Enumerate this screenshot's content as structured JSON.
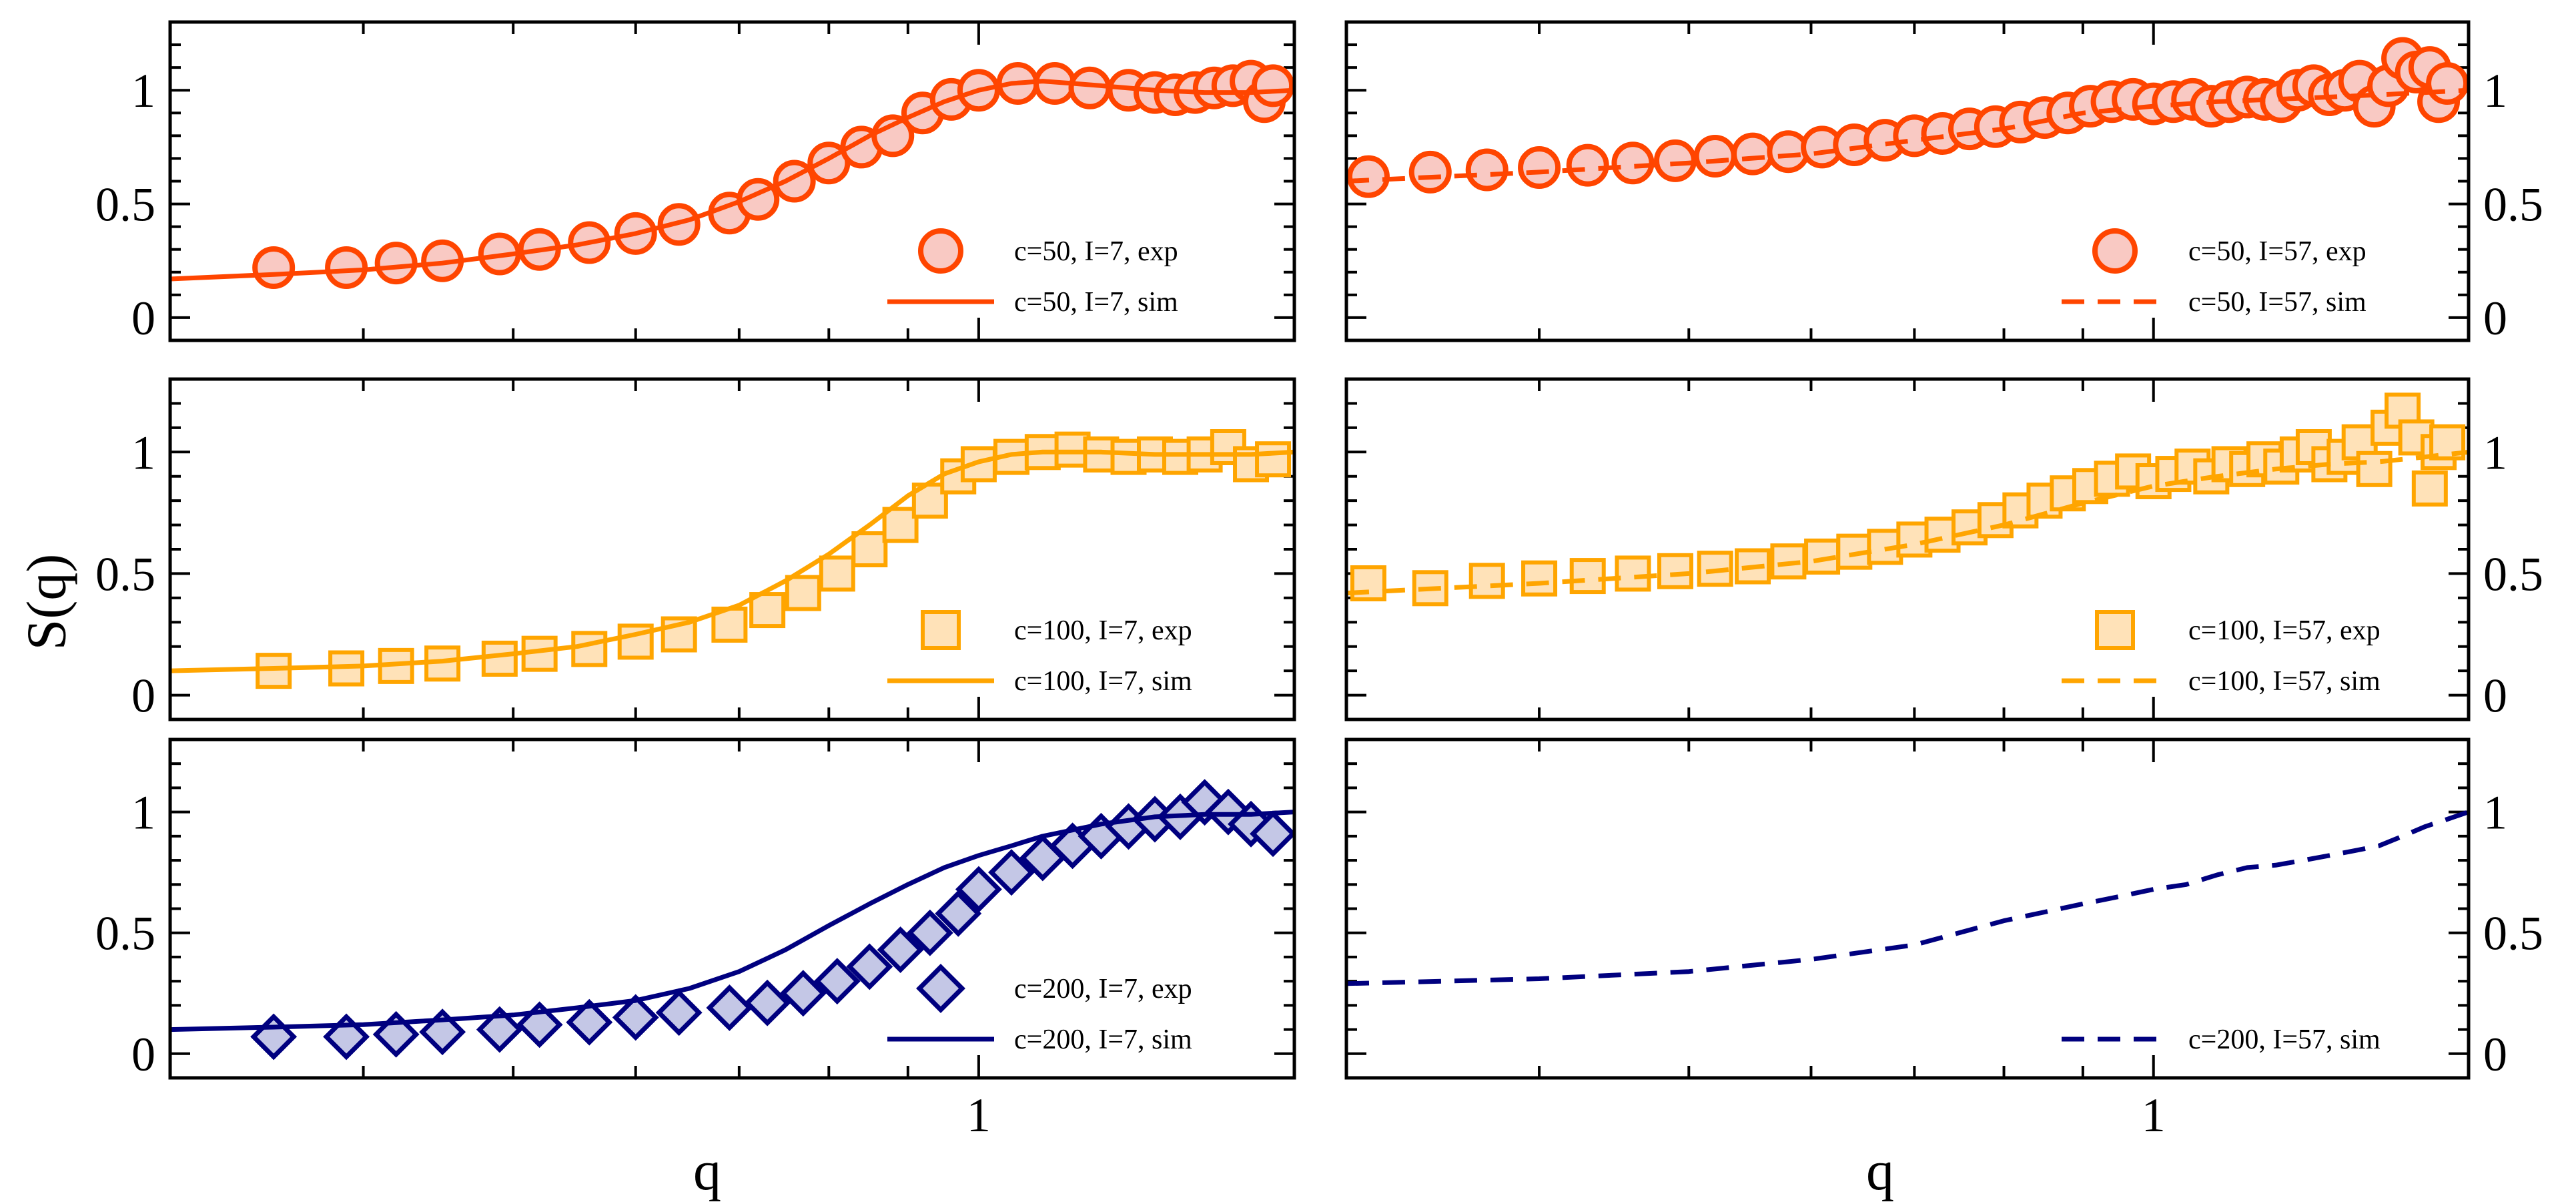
{
  "figure": {
    "y_axis_label": "S(q)",
    "x_axis_label": "q"
  },
  "colors": {
    "c50": "#ff4500",
    "c50_fill": "#f9c9c3",
    "c100": "#ffa500",
    "c100_fill": "#ffe2b8",
    "c200": "#00007f",
    "c200_fill": "#c4c7e6",
    "frame": "#000000"
  },
  "chart_data": [
    {
      "type": "scatter",
      "panel": "top-left",
      "x_scale": "log",
      "xlim": [
        0.3,
        1.6
      ],
      "ylim": [
        -0.1,
        1.3
      ],
      "x_tick_labels": [
        {
          "value": 1,
          "label": "1"
        }
      ],
      "y_tick_labels": [
        {
          "value": 0,
          "label": "0"
        },
        {
          "value": 0.5,
          "label": "0.5"
        },
        {
          "value": 1,
          "label": "1"
        }
      ],
      "legend_position": "bottom-right",
      "series": [
        {
          "name": "c=50, I=7, exp",
          "kind": "exp",
          "marker": "circle",
          "color": "#ff4500",
          "fill": "#f9c9c3",
          "x": [
            0.35,
            0.39,
            0.42,
            0.45,
            0.49,
            0.52,
            0.56,
            0.6,
            0.64,
            0.69,
            0.72,
            0.76,
            0.8,
            0.84,
            0.88,
            0.92,
            0.96,
            1.0,
            1.06,
            1.12,
            1.18,
            1.25,
            1.3,
            1.34,
            1.38,
            1.42,
            1.46,
            1.5,
            1.53,
            1.55
          ],
          "y": [
            0.22,
            0.22,
            0.24,
            0.25,
            0.28,
            0.3,
            0.33,
            0.37,
            0.41,
            0.46,
            0.52,
            0.6,
            0.68,
            0.75,
            0.8,
            0.9,
            0.96,
            1.0,
            1.03,
            1.03,
            1.01,
            1.0,
            0.99,
            0.98,
            0.99,
            1.01,
            1.02,
            1.04,
            0.95,
            1.02
          ]
        },
        {
          "name": "c=50, I=7, sim",
          "kind": "sim",
          "line": "solid",
          "color": "#ff4500",
          "x": [
            0.3,
            0.35,
            0.4,
            0.45,
            0.5,
            0.55,
            0.6,
            0.65,
            0.7,
            0.75,
            0.8,
            0.85,
            0.9,
            0.95,
            1.0,
            1.05,
            1.1,
            1.15,
            1.2,
            1.3,
            1.4,
            1.5,
            1.6
          ],
          "y": [
            0.17,
            0.19,
            0.21,
            0.24,
            0.28,
            0.32,
            0.37,
            0.43,
            0.51,
            0.6,
            0.7,
            0.8,
            0.88,
            0.95,
            1.0,
            1.03,
            1.04,
            1.03,
            1.02,
            1.0,
            0.99,
            0.99,
            1.0
          ]
        }
      ]
    },
    {
      "type": "scatter",
      "panel": "top-right",
      "x_scale": "log",
      "xlim": [
        0.3,
        1.6
      ],
      "ylim": [
        -0.1,
        1.3
      ],
      "x_tick_labels": [
        {
          "value": 1,
          "label": "1"
        }
      ],
      "y_tick_labels": [
        {
          "value": 0,
          "label": "0"
        },
        {
          "value": 0.5,
          "label": "0.5"
        },
        {
          "value": 1,
          "label": "1"
        }
      ],
      "legend_position": "bottom-right",
      "series": [
        {
          "name": "c=50, I=57, exp",
          "kind": "exp",
          "marker": "circle",
          "color": "#ff4500",
          "fill": "#f9c9c3",
          "x": [
            0.31,
            0.34,
            0.37,
            0.4,
            0.43,
            0.46,
            0.49,
            0.52,
            0.55,
            0.58,
            0.61,
            0.64,
            0.67,
            0.7,
            0.73,
            0.76,
            0.79,
            0.82,
            0.85,
            0.88,
            0.91,
            0.94,
            0.97,
            1.0,
            1.03,
            1.06,
            1.09,
            1.12,
            1.15,
            1.18,
            1.21,
            1.24,
            1.27,
            1.3,
            1.33,
            1.36,
            1.39,
            1.42,
            1.45,
            1.48,
            1.51,
            1.53,
            1.55
          ],
          "y": [
            0.62,
            0.64,
            0.65,
            0.66,
            0.67,
            0.68,
            0.69,
            0.71,
            0.72,
            0.73,
            0.75,
            0.76,
            0.78,
            0.8,
            0.81,
            0.83,
            0.84,
            0.86,
            0.88,
            0.9,
            0.93,
            0.95,
            0.96,
            0.94,
            0.95,
            0.96,
            0.93,
            0.95,
            0.97,
            0.96,
            0.95,
            1.0,
            1.02,
            0.98,
            1.0,
            1.04,
            0.93,
            1.02,
            1.14,
            1.08,
            1.1,
            0.95,
            1.03
          ]
        },
        {
          "name": "c=50, I=57, sim",
          "kind": "sim",
          "line": "dashed",
          "color": "#ff4500",
          "x": [
            0.3,
            0.4,
            0.5,
            0.6,
            0.7,
            0.8,
            0.9,
            1.0,
            1.1,
            1.2,
            1.3,
            1.4,
            1.5,
            1.6
          ],
          "y": [
            0.6,
            0.64,
            0.68,
            0.72,
            0.78,
            0.83,
            0.9,
            0.93,
            0.95,
            0.96,
            0.97,
            0.98,
            0.99,
            1.0
          ]
        }
      ]
    },
    {
      "type": "scatter",
      "panel": "middle-left",
      "x_scale": "log",
      "xlim": [
        0.3,
        1.6
      ],
      "ylim": [
        -0.1,
        1.3
      ],
      "x_tick_labels": [
        {
          "value": 1,
          "label": "1"
        }
      ],
      "y_tick_labels": [
        {
          "value": 0,
          "label": "0"
        },
        {
          "value": 0.5,
          "label": "0.5"
        },
        {
          "value": 1,
          "label": "1"
        }
      ],
      "legend_position": "bottom-right",
      "series": [
        {
          "name": "c=100, I=7, exp",
          "kind": "exp",
          "marker": "square",
          "color": "#ffa500",
          "fill": "#ffe2b8",
          "x": [
            0.35,
            0.39,
            0.42,
            0.45,
            0.49,
            0.52,
            0.56,
            0.6,
            0.64,
            0.69,
            0.73,
            0.77,
            0.81,
            0.85,
            0.89,
            0.93,
            0.97,
            1.0,
            1.05,
            1.1,
            1.15,
            1.2,
            1.25,
            1.3,
            1.35,
            1.4,
            1.45,
            1.5,
            1.55
          ],
          "y": [
            0.1,
            0.11,
            0.12,
            0.13,
            0.15,
            0.17,
            0.19,
            0.22,
            0.25,
            0.29,
            0.35,
            0.42,
            0.5,
            0.6,
            0.7,
            0.8,
            0.9,
            0.95,
            0.98,
            1.0,
            1.01,
            0.99,
            0.98,
            0.99,
            0.98,
            0.99,
            1.02,
            0.95,
            0.97
          ]
        },
        {
          "name": "c=100, I=7, sim",
          "kind": "sim",
          "line": "solid",
          "color": "#ffa500",
          "x": [
            0.3,
            0.35,
            0.4,
            0.45,
            0.5,
            0.55,
            0.6,
            0.65,
            0.7,
            0.75,
            0.8,
            0.85,
            0.9,
            0.95,
            1.0,
            1.05,
            1.1,
            1.2,
            1.3,
            1.4,
            1.5,
            1.6
          ],
          "y": [
            0.1,
            0.11,
            0.12,
            0.14,
            0.17,
            0.2,
            0.25,
            0.3,
            0.37,
            0.47,
            0.58,
            0.7,
            0.82,
            0.91,
            0.96,
            0.99,
            1.0,
            1.0,
            0.99,
            0.99,
            0.99,
            1.0
          ]
        }
      ]
    },
    {
      "type": "scatter",
      "panel": "middle-right",
      "x_scale": "log",
      "xlim": [
        0.3,
        1.6
      ],
      "ylim": [
        -0.1,
        1.3
      ],
      "x_tick_labels": [
        {
          "value": 1,
          "label": "1"
        }
      ],
      "y_tick_labels": [
        {
          "value": 0,
          "label": "0"
        },
        {
          "value": 0.5,
          "label": "0.5"
        },
        {
          "value": 1,
          "label": "1"
        }
      ],
      "legend_position": "bottom-right",
      "series": [
        {
          "name": "c=100, I=57, exp",
          "kind": "exp",
          "marker": "square",
          "color": "#ffa500",
          "fill": "#ffe2b8",
          "x": [
            0.31,
            0.34,
            0.37,
            0.4,
            0.43,
            0.46,
            0.49,
            0.52,
            0.55,
            0.58,
            0.61,
            0.64,
            0.67,
            0.7,
            0.73,
            0.76,
            0.79,
            0.82,
            0.85,
            0.88,
            0.91,
            0.94,
            0.97,
            1.0,
            1.03,
            1.06,
            1.09,
            1.12,
            1.15,
            1.18,
            1.21,
            1.24,
            1.27,
            1.3,
            1.33,
            1.36,
            1.39,
            1.42,
            1.45,
            1.48,
            1.51,
            1.53,
            1.55
          ],
          "y": [
            0.46,
            0.44,
            0.47,
            0.48,
            0.49,
            0.5,
            0.51,
            0.52,
            0.53,
            0.55,
            0.57,
            0.59,
            0.61,
            0.64,
            0.66,
            0.69,
            0.72,
            0.76,
            0.8,
            0.83,
            0.86,
            0.89,
            0.92,
            0.88,
            0.91,
            0.94,
            0.9,
            0.95,
            0.93,
            0.97,
            0.94,
            0.99,
            1.02,
            0.95,
            0.98,
            1.04,
            0.93,
            1.1,
            1.17,
            1.06,
            0.85,
            1.0,
            1.04
          ]
        },
        {
          "name": "c=100, I=57, sim",
          "kind": "sim",
          "line": "dashed",
          "color": "#ffa500",
          "x": [
            0.3,
            0.4,
            0.5,
            0.6,
            0.7,
            0.8,
            0.9,
            1.0,
            1.1,
            1.2,
            1.3,
            1.4,
            1.5,
            1.6
          ],
          "y": [
            0.42,
            0.46,
            0.5,
            0.55,
            0.62,
            0.7,
            0.79,
            0.86,
            0.9,
            0.93,
            0.95,
            0.96,
            0.98,
            1.0
          ]
        }
      ]
    },
    {
      "type": "scatter",
      "panel": "bottom-left",
      "x_scale": "log",
      "xlim": [
        0.3,
        1.6
      ],
      "ylim": [
        -0.1,
        1.3
      ],
      "x_tick_labels": [
        {
          "value": 1,
          "label": "1"
        }
      ],
      "y_tick_labels": [
        {
          "value": 0,
          "label": "0"
        },
        {
          "value": 0.5,
          "label": "0.5"
        },
        {
          "value": 1,
          "label": "1"
        }
      ],
      "legend_position": "bottom-right",
      "series": [
        {
          "name": "c=200, I=7, exp",
          "kind": "exp",
          "marker": "diamond",
          "color": "#00007f",
          "fill": "#c4c7e6",
          "x": [
            0.35,
            0.39,
            0.42,
            0.45,
            0.49,
            0.52,
            0.56,
            0.6,
            0.64,
            0.69,
            0.73,
            0.77,
            0.81,
            0.85,
            0.89,
            0.93,
            0.97,
            1.0,
            1.05,
            1.1,
            1.15,
            1.2,
            1.25,
            1.3,
            1.35,
            1.4,
            1.45,
            1.5,
            1.55
          ],
          "y": [
            0.07,
            0.07,
            0.08,
            0.09,
            0.1,
            0.12,
            0.13,
            0.15,
            0.17,
            0.19,
            0.21,
            0.25,
            0.3,
            0.36,
            0.43,
            0.5,
            0.58,
            0.68,
            0.75,
            0.81,
            0.86,
            0.9,
            0.94,
            0.97,
            0.98,
            1.04,
            1.0,
            0.95,
            0.91
          ]
        },
        {
          "name": "c=200, I=7, sim",
          "kind": "sim",
          "line": "solid",
          "color": "#00007f",
          "x": [
            0.3,
            0.35,
            0.4,
            0.45,
            0.5,
            0.55,
            0.6,
            0.65,
            0.7,
            0.75,
            0.8,
            0.85,
            0.9,
            0.95,
            1.0,
            1.05,
            1.1,
            1.2,
            1.3,
            1.4,
            1.5,
            1.6
          ],
          "y": [
            0.1,
            0.11,
            0.12,
            0.14,
            0.16,
            0.19,
            0.22,
            0.27,
            0.34,
            0.43,
            0.53,
            0.62,
            0.7,
            0.77,
            0.82,
            0.86,
            0.9,
            0.95,
            0.98,
            0.99,
            0.99,
            1.0
          ]
        }
      ]
    },
    {
      "type": "line",
      "panel": "bottom-right",
      "x_scale": "log",
      "xlim": [
        0.3,
        1.6
      ],
      "ylim": [
        -0.1,
        1.3
      ],
      "x_tick_labels": [
        {
          "value": 1,
          "label": "1"
        }
      ],
      "y_tick_labels": [
        {
          "value": 0,
          "label": "0"
        },
        {
          "value": 0.5,
          "label": "0.5"
        },
        {
          "value": 1,
          "label": "1"
        }
      ],
      "legend_position": "bottom-right",
      "series": [
        {
          "name": "c=200, I=57, sim",
          "kind": "sim",
          "line": "dashed",
          "color": "#00007f",
          "x": [
            0.3,
            0.4,
            0.5,
            0.6,
            0.7,
            0.8,
            0.9,
            0.95,
            1.0,
            1.05,
            1.1,
            1.15,
            1.2,
            1.25,
            1.3,
            1.35,
            1.4,
            1.45,
            1.5,
            1.55,
            1.6
          ],
          "y": [
            0.29,
            0.31,
            0.34,
            0.39,
            0.45,
            0.55,
            0.62,
            0.65,
            0.68,
            0.7,
            0.74,
            0.77,
            0.78,
            0.8,
            0.82,
            0.84,
            0.86,
            0.9,
            0.94,
            0.97,
            1.0
          ]
        }
      ]
    }
  ]
}
